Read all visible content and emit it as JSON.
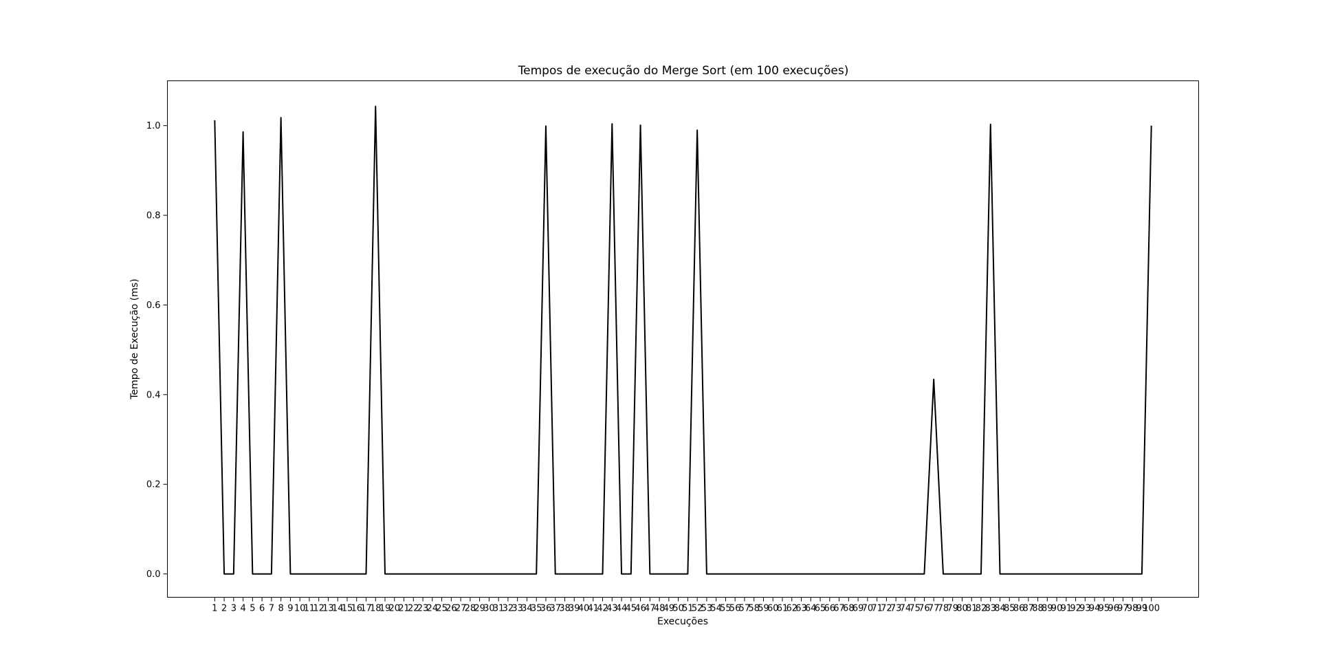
{
  "chart_data": {
    "type": "line",
    "title": "Tempos de execução do Merge Sort (em 100 execuções)",
    "xlabel": "Execuções",
    "ylabel": "Tempo de Execução (ms)",
    "x": [
      1,
      2,
      3,
      4,
      5,
      6,
      7,
      8,
      9,
      10,
      11,
      12,
      13,
      14,
      15,
      16,
      17,
      18,
      19,
      20,
      21,
      22,
      23,
      24,
      25,
      26,
      27,
      28,
      29,
      30,
      31,
      32,
      33,
      34,
      35,
      36,
      37,
      38,
      39,
      40,
      41,
      42,
      43,
      44,
      45,
      46,
      47,
      48,
      49,
      50,
      51,
      52,
      53,
      54,
      55,
      56,
      57,
      58,
      59,
      60,
      61,
      62,
      63,
      64,
      65,
      66,
      67,
      68,
      69,
      70,
      71,
      72,
      73,
      74,
      75,
      76,
      77,
      78,
      79,
      80,
      81,
      82,
      83,
      84,
      85,
      86,
      87,
      88,
      89,
      90,
      91,
      92,
      93,
      94,
      95,
      96,
      97,
      98,
      99,
      100
    ],
    "series": [
      {
        "color": "#000000",
        "values": [
          1.012,
          0,
          0,
          0.986,
          0,
          0,
          0,
          1.018,
          0,
          0,
          0,
          0,
          0,
          0,
          0,
          0,
          0,
          1.043,
          0,
          0,
          0,
          0,
          0,
          0,
          0,
          0,
          0,
          0,
          0,
          0,
          0,
          0,
          0,
          0,
          0,
          0.999,
          0,
          0,
          0,
          0,
          0,
          0,
          1.004,
          0,
          0,
          1.001,
          0,
          0,
          0,
          0,
          0,
          0.99,
          0,
          0,
          0,
          0,
          0,
          0,
          0,
          0,
          0,
          0,
          0,
          0,
          0,
          0,
          0,
          0,
          0,
          0,
          0,
          0,
          0,
          0,
          0,
          0,
          0.434,
          0,
          0,
          0,
          0,
          0,
          1.003,
          0,
          0,
          0,
          0,
          0,
          0,
          0,
          0,
          0,
          0,
          0,
          0,
          0,
          0,
          0,
          0,
          1.0
        ]
      }
    ],
    "xticks": [
      "1",
      "2",
      "3",
      "4",
      "5",
      "6",
      "7",
      "8",
      "9",
      "10",
      "11",
      "12",
      "13",
      "14",
      "15",
      "16",
      "17",
      "18",
      "19",
      "20",
      "21",
      "22",
      "23",
      "24",
      "25",
      "26",
      "27",
      "28",
      "29",
      "30",
      "31",
      "32",
      "33",
      "34",
      "35",
      "36",
      "37",
      "38",
      "39",
      "40",
      "41",
      "42",
      "43",
      "44",
      "45",
      "46",
      "47",
      "48",
      "49",
      "50",
      "51",
      "52",
      "53",
      "54",
      "55",
      "56",
      "57",
      "58",
      "59",
      "60",
      "61",
      "62",
      "63",
      "64",
      "65",
      "66",
      "67",
      "68",
      "69",
      "70",
      "71",
      "72",
      "73",
      "74",
      "75",
      "76",
      "77",
      "78",
      "79",
      "80",
      "81",
      "82",
      "83",
      "84",
      "85",
      "86",
      "87",
      "88",
      "89",
      "90",
      "91",
      "92",
      "93",
      "94",
      "95",
      "96",
      "97",
      "98",
      "99",
      "100"
    ],
    "yticks": [
      "0.0",
      "0.2",
      "0.4",
      "0.6",
      "0.8",
      "1.0"
    ],
    "ylim": [
      -0.052,
      1.1
    ],
    "xlim": [
      -4,
      105
    ],
    "grid": false,
    "legend": "none"
  }
}
